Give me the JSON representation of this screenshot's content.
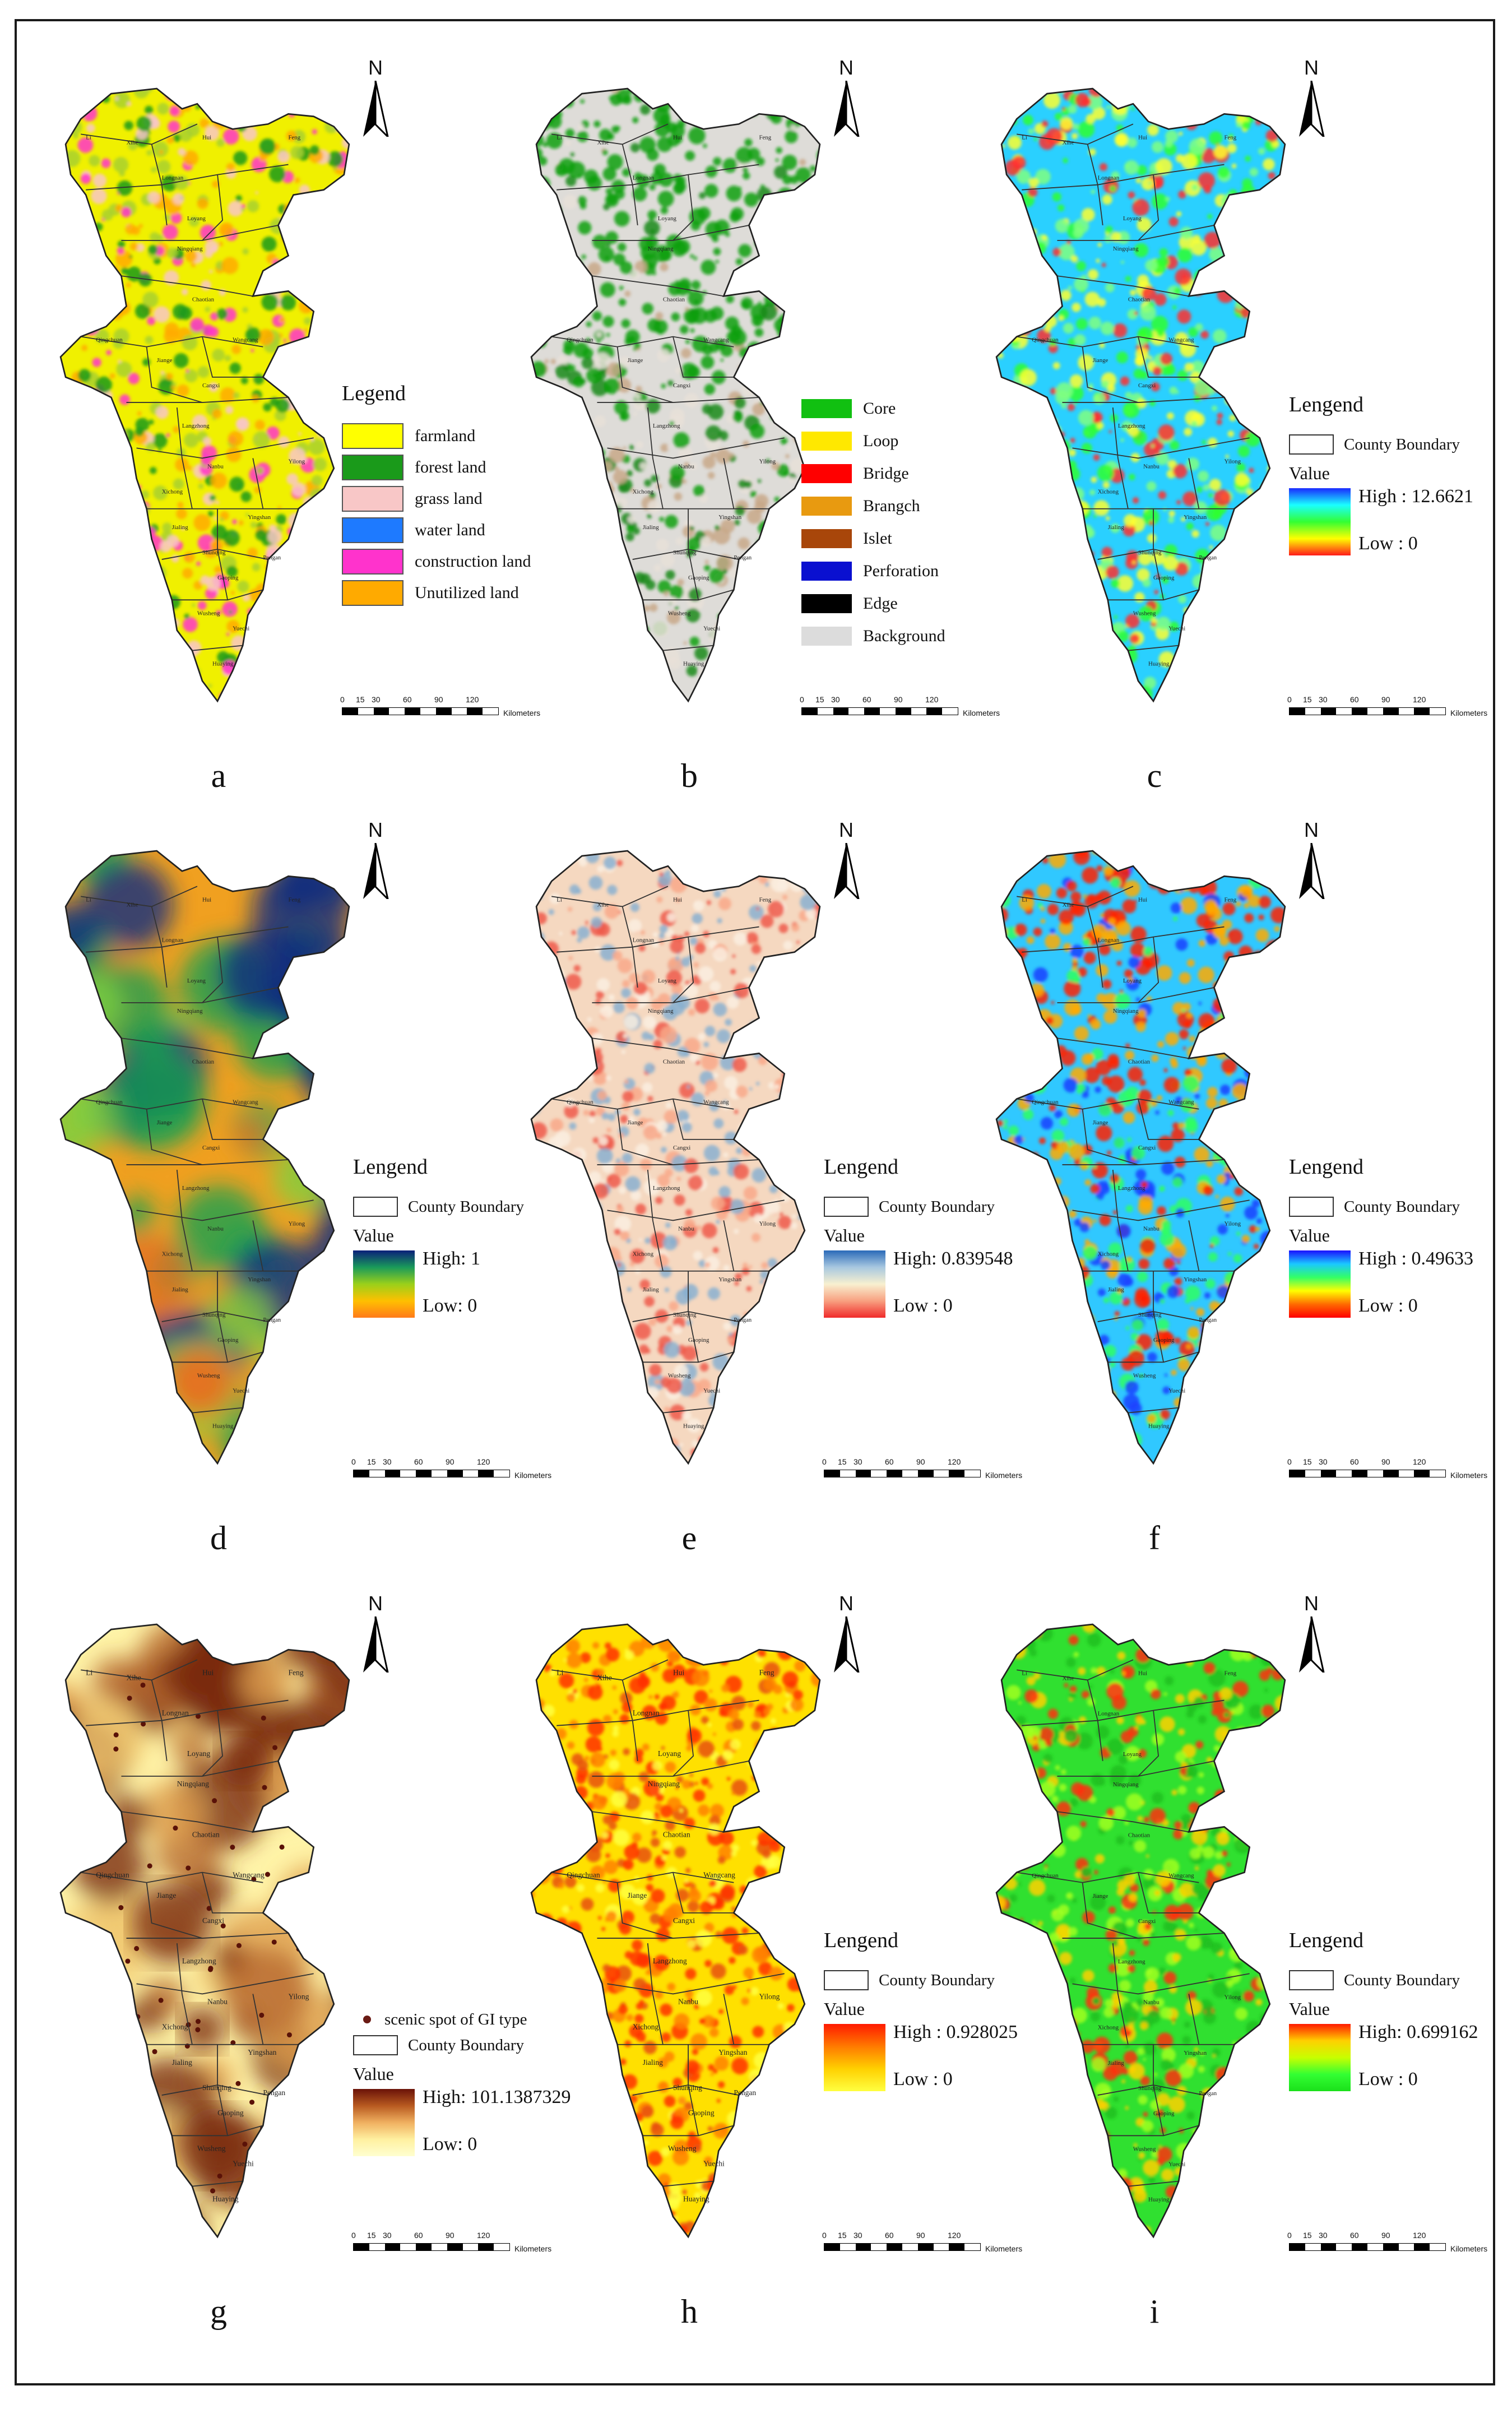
{
  "panels": [
    {
      "letter": "a",
      "north": "N",
      "legend_type": "categorical",
      "legend_title": "Legend",
      "items": [
        {
          "label": "farmland",
          "color": "#ffff00"
        },
        {
          "label": "forest land",
          "color": "#1a9a1a"
        },
        {
          "label": "grass land",
          "color": "#f8c7c7"
        },
        {
          "label": "water land",
          "color": "#1e7aff"
        },
        {
          "label": "construction land",
          "color": "#ff33cc"
        },
        {
          "label": "Unutilized land",
          "color": "#ffaa00"
        }
      ]
    },
    {
      "letter": "b",
      "north": "N",
      "legend_type": "categorical",
      "legend_title": "",
      "items": [
        {
          "label": "Core",
          "color": "#11c011"
        },
        {
          "label": "Loop",
          "color": "#ffe800"
        },
        {
          "label": "Bridge",
          "color": "#ff0000"
        },
        {
          "label": "Brangch",
          "color": "#e89a10"
        },
        {
          "label": "Islet",
          "color": "#a8460a"
        },
        {
          "label": "Perforation",
          "color": "#0a10d0"
        },
        {
          "label": "Edge",
          "color": "#000000"
        },
        {
          "label": "Background",
          "color": "#dcdcdc"
        }
      ]
    },
    {
      "letter": "c",
      "north": "N",
      "legend_type": "ramp",
      "legend_title": "Lengend",
      "boundary_label": "County Boundary",
      "value_label": "Value",
      "high": "High : 12.6621",
      "low": "Low :  0",
      "ramp_colors": [
        "#1a2aff",
        "#1affff",
        "#33ff33",
        "#ffff00",
        "#ff1a1a"
      ]
    },
    {
      "letter": "d",
      "north": "N",
      "legend_type": "ramp",
      "legend_title": "Lengend",
      "boundary_label": "County Boundary",
      "value_label": "Value",
      "high": "High:  1",
      "low": "Low:   0",
      "ramp_colors": [
        "#0a1f7a",
        "#1a9a5a",
        "#9ad01a",
        "#ffc000",
        "#ff7a1a"
      ]
    },
    {
      "letter": "e",
      "north": "N",
      "legend_type": "ramp",
      "legend_title": "Lengend",
      "boundary_label": "County Boundary",
      "value_label": "Value",
      "high": "High:  0.839548",
      "low": "Low :  0",
      "ramp_colors": [
        "#2a6ab8",
        "#a8c8e0",
        "#f8f0d0",
        "#f8a080",
        "#f02a2a"
      ]
    },
    {
      "letter": "f",
      "north": "N",
      "legend_type": "ramp",
      "legend_title": "Lengend",
      "boundary_label": "County Boundary",
      "value_label": "Value",
      "high": "High : 0.49633",
      "low": "Low :  0",
      "ramp_colors": [
        "#1a10ff",
        "#1ac8ff",
        "#33ff66",
        "#ffff00",
        "#ff6a00",
        "#ff0000"
      ]
    },
    {
      "letter": "g",
      "north": "N",
      "legend_type": "ramp",
      "legend_title": "",
      "boundary_label": "County Boundary",
      "point_label": "scenic spot of GI type",
      "value_label": "Value",
      "high": "High:  101.1387329",
      "low": "Low:    0",
      "ramp_colors": [
        "#6a1208",
        "#b85a20",
        "#f0b060",
        "#fff0a0",
        "#ffffd0"
      ]
    },
    {
      "letter": "h",
      "north": "N",
      "legend_type": "ramp",
      "legend_title": "Lengend",
      "boundary_label": "County Boundary",
      "value_label": "Value",
      "high": "High :  0.928025",
      "low": "Low :  0",
      "ramp_colors": [
        "#ff1a00",
        "#ff7a00",
        "#ffd000",
        "#ffff40"
      ]
    },
    {
      "letter": "i",
      "north": "N",
      "legend_type": "ramp",
      "legend_title": "Lengend",
      "boundary_label": "County Boundary",
      "value_label": "Value",
      "high": "High: 0.699162",
      "low": "Low :  0",
      "ramp_colors": [
        "#ff1a00",
        "#ffd000",
        "#c8ff00",
        "#33ff33",
        "#1ae01a"
      ]
    }
  ],
  "scalebar": {
    "ticks": [
      "0",
      "15",
      "30",
      "60",
      "90",
      "120"
    ],
    "unit": "Kilometers"
  },
  "county_labels": [
    "Li",
    "Xihe",
    "Hui",
    "Feng",
    "Longnan",
    "Loyang",
    "Ningqiang",
    "Chaotian",
    "Qingchuan",
    "Wangcang",
    "Jiange",
    "Cangxi",
    "Langzhong",
    "Nanbu",
    "Yilong",
    "Xichong",
    "Jialing",
    "Yingshan",
    "Shunqing",
    "Gaoping",
    "Pengan",
    "Wusheng",
    "Yuechi",
    "Huaying"
  ],
  "map_palettes": {
    "a": {
      "base": "#f0f000",
      "patches": [
        "#1a9a1a",
        "#a8d030",
        "#f8c7c7",
        "#ffaa00",
        "#ff33cc"
      ]
    },
    "b": {
      "base": "#dedcd8",
      "patches": [
        "#11a011",
        "#c8a888",
        "#1a8a1a",
        "#e8e0d8"
      ]
    },
    "c": {
      "base": "#2ad0ff",
      "patches": [
        "#80ff80",
        "#ffff30",
        "#ff3030",
        "#30ff30"
      ]
    },
    "d": {
      "base": "#f0a020",
      "patches": [
        "#0a2a80",
        "#1aa050",
        "#80d040",
        "#e87020"
      ]
    },
    "e": {
      "base": "#f5d8c0",
      "patches": [
        "#ee5a4a",
        "#f8a888",
        "#8ab0d0",
        "#faefe0"
      ]
    },
    "f": {
      "base": "#30c8ff",
      "patches": [
        "#ff2000",
        "#ffaa00",
        "#30ff60",
        "#1a40ff"
      ]
    },
    "g": {
      "base": "#fff4a8",
      "patches": [
        "#f0c870",
        "#e0a050",
        "#b86a30",
        "#7a2a10"
      ]
    },
    "h": {
      "base": "#ffe000",
      "patches": [
        "#ff3000",
        "#ff8000",
        "#e85010",
        "#ffff40"
      ]
    },
    "i": {
      "base": "#30e030",
      "patches": [
        "#ff3010",
        "#ffd000",
        "#a0ff20",
        "#20c020"
      ]
    }
  }
}
